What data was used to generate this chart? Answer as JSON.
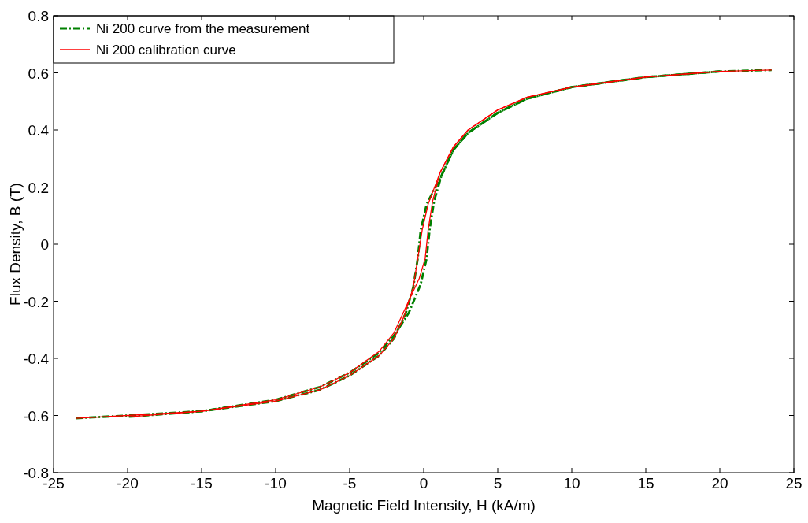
{
  "chart_data": {
    "type": "line",
    "xlabel": "Magnetic Field Intensity, H (kA/m)",
    "ylabel": "Flux Density, B (T)",
    "xlim": [
      -25,
      25
    ],
    "xticks": [
      -25,
      -20,
      -15,
      -10,
      -5,
      0,
      5,
      10,
      15,
      20,
      25
    ],
    "ylim": [
      -0.8,
      0.8
    ],
    "yticks": [
      -0.8,
      -0.6,
      -0.4,
      -0.2,
      0,
      0.2,
      0.4,
      0.6,
      0.8
    ],
    "grid": false,
    "legend": "top left",
    "marker": "none",
    "series": [
      {
        "name": "Ni 200 curve from the measurement",
        "color": "#008000",
        "line_style": "dashed",
        "x": [
          -23.5,
          -20,
          -15,
          -10,
          -7,
          -5,
          -3,
          -2,
          -1,
          -0.2,
          0.2,
          0.4,
          0.7,
          1.2,
          2,
          3,
          5,
          7,
          10,
          15,
          20,
          23.5
        ],
        "values": [
          -0.61,
          -0.6,
          -0.585,
          -0.545,
          -0.5,
          -0.45,
          -0.38,
          -0.32,
          -0.24,
          -0.14,
          -0.05,
          0.05,
          0.15,
          0.24,
          0.33,
          0.39,
          0.46,
          0.51,
          0.55,
          0.585,
          0.605,
          0.61
        ]
      },
      {
        "color": "#008000",
        "line_style": "dashed",
        "x": [
          20,
          15,
          10,
          7,
          5,
          3,
          2,
          1.2,
          0.2,
          -0.2,
          -0.4,
          -0.7,
          -1.2,
          -2,
          -3,
          -5,
          -7,
          -10,
          -15,
          -20
        ],
        "values": [
          0.605,
          0.585,
          0.55,
          0.51,
          0.46,
          0.39,
          0.33,
          0.24,
          0.14,
          0.05,
          -0.05,
          -0.15,
          -0.24,
          -0.33,
          -0.39,
          -0.46,
          -0.51,
          -0.55,
          -0.585,
          -0.605
        ]
      },
      {
        "name": "Ni 200 calibration curve",
        "color": "#ff0000",
        "line_style": "solid",
        "x": [
          -23.5,
          -20,
          -15,
          -10,
          -7,
          -5,
          -3,
          -2,
          -1.2,
          -0.3,
          0.1,
          0.3,
          0.6,
          1.1,
          2,
          3,
          5,
          7,
          10,
          15,
          20,
          23.5
        ],
        "values": [
          -0.61,
          -0.6,
          -0.585,
          -0.545,
          -0.5,
          -0.45,
          -0.375,
          -0.31,
          -0.22,
          -0.12,
          -0.05,
          0.05,
          0.15,
          0.25,
          0.34,
          0.4,
          0.47,
          0.515,
          0.55,
          0.585,
          0.605,
          0.61
        ]
      },
      {
        "color": "#ff0000",
        "line_style": "solid",
        "x": [
          20,
          15,
          10,
          7,
          5,
          3,
          2,
          1.1,
          0.3,
          -0.1,
          -0.4,
          -0.7,
          -1.3,
          -2,
          -3,
          -5,
          -7,
          -10,
          -15,
          -20
        ],
        "values": [
          0.605,
          0.585,
          0.55,
          0.515,
          0.47,
          0.4,
          0.34,
          0.25,
          0.14,
          0.05,
          -0.05,
          -0.15,
          -0.25,
          -0.33,
          -0.39,
          -0.46,
          -0.51,
          -0.55,
          -0.585,
          -0.605
        ]
      }
    ]
  }
}
